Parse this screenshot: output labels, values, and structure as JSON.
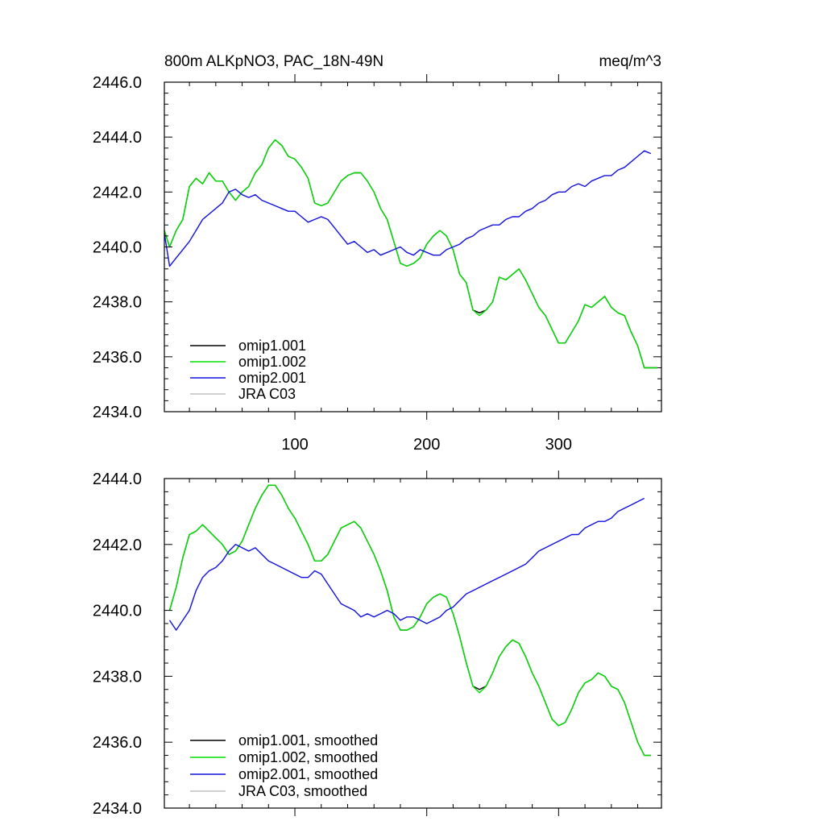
{
  "chart_data": [
    {
      "type": "line",
      "title": "800m ALKpNO3, PAC_18N-49N",
      "units": "meq/m^3",
      "xlim": [
        1,
        378
      ],
      "ylim": [
        2434.0,
        2446.0
      ],
      "xticks": [
        100,
        200,
        300
      ],
      "yticks": [
        2434.0,
        2436.0,
        2438.0,
        2440.0,
        2442.0,
        2444.0,
        2446.0
      ],
      "ytick_labels": [
        "2434.0",
        "2436.0",
        "2438.0",
        "2440.0",
        "2442.0",
        "2444.0",
        "2446.0"
      ],
      "xtick_labels": [
        "100",
        "200",
        "300"
      ],
      "legend_position": "bottom-left",
      "series": [
        {
          "name": "omip1.001",
          "color": "#000000",
          "x": [
            1,
            5,
            10,
            15,
            20,
            25,
            30,
            35,
            40,
            45,
            50,
            55,
            60,
            65,
            70,
            75,
            80,
            85,
            90,
            95,
            100,
            105,
            110,
            115,
            120,
            125,
            130,
            135,
            140,
            145,
            150,
            155,
            160,
            165,
            170,
            175,
            180,
            185,
            190,
            195,
            200,
            205,
            210,
            215,
            220,
            225,
            230,
            235,
            240,
            245,
            250,
            255,
            260,
            265,
            270,
            275,
            280,
            285,
            290,
            295,
            300,
            305,
            310,
            315,
            320,
            325,
            330,
            335,
            340,
            345,
            350,
            355,
            360,
            365,
            370,
            375
          ],
          "y": [
            2440.6,
            2440.0,
            2440.6,
            2441.0,
            2442.2,
            2442.5,
            2442.3,
            2442.7,
            2442.4,
            2442.4,
            2442.0,
            2441.7,
            2442.0,
            2442.2,
            2442.7,
            2443.0,
            2443.6,
            2443.9,
            2443.7,
            2443.3,
            2443.2,
            2442.9,
            2442.5,
            2441.6,
            2441.5,
            2441.6,
            2442.0,
            2442.4,
            2442.6,
            2442.7,
            2442.7,
            2442.4,
            2442.0,
            2441.4,
            2441.0,
            2440.2,
            2439.4,
            2439.3,
            2439.4,
            2439.6,
            2440.1,
            2440.4,
            2440.6,
            2440.4,
            2439.9,
            2439.0,
            2438.7,
            2437.7,
            2437.6,
            2437.7,
            2438.0,
            2438.9,
            2438.8,
            2439.0,
            2439.2,
            2438.8,
            2438.3,
            2437.8,
            2437.5,
            2437.0,
            2436.5,
            2436.5,
            2436.9,
            2437.3,
            2437.9,
            2437.8,
            2438.0,
            2438.2,
            2437.8,
            2437.6,
            2437.5,
            2436.9,
            2436.4,
            2435.6,
            2435.6,
            2435.6
          ]
        },
        {
          "name": "omip1.002",
          "color": "#00e000",
          "x": [
            1,
            5,
            10,
            15,
            20,
            25,
            30,
            35,
            40,
            45,
            50,
            55,
            60,
            65,
            70,
            75,
            80,
            85,
            90,
            95,
            100,
            105,
            110,
            115,
            120,
            125,
            130,
            135,
            140,
            145,
            150,
            155,
            160,
            165,
            170,
            175,
            180,
            185,
            190,
            195,
            200,
            205,
            210,
            215,
            220,
            225,
            230,
            235,
            240,
            245,
            250,
            255,
            260,
            265,
            270,
            275,
            280,
            285,
            290,
            295,
            300,
            305,
            310,
            315,
            320,
            325,
            330,
            335,
            340,
            345,
            350,
            355,
            360,
            365,
            370,
            375
          ],
          "y": [
            2440.6,
            2440.0,
            2440.6,
            2441.0,
            2442.2,
            2442.5,
            2442.3,
            2442.7,
            2442.4,
            2442.4,
            2442.0,
            2441.7,
            2442.0,
            2442.2,
            2442.7,
            2443.0,
            2443.6,
            2443.9,
            2443.7,
            2443.3,
            2443.2,
            2442.9,
            2442.5,
            2441.6,
            2441.5,
            2441.6,
            2442.0,
            2442.4,
            2442.6,
            2442.7,
            2442.7,
            2442.4,
            2442.0,
            2441.4,
            2441.0,
            2440.2,
            2439.4,
            2439.3,
            2439.4,
            2439.6,
            2440.1,
            2440.4,
            2440.6,
            2440.4,
            2439.9,
            2439.0,
            2438.7,
            2437.7,
            2437.5,
            2437.7,
            2438.0,
            2438.9,
            2438.8,
            2439.0,
            2439.2,
            2438.8,
            2438.3,
            2437.8,
            2437.5,
            2437.0,
            2436.5,
            2436.5,
            2436.9,
            2437.3,
            2437.9,
            2437.8,
            2438.0,
            2438.2,
            2437.8,
            2437.6,
            2437.5,
            2436.9,
            2436.4,
            2435.6,
            2435.6,
            2435.6
          ]
        },
        {
          "name": "omip2.001",
          "color": "#1010e0",
          "x": [
            1,
            5,
            10,
            15,
            20,
            25,
            30,
            35,
            40,
            45,
            50,
            55,
            60,
            65,
            70,
            75,
            80,
            85,
            90,
            95,
            100,
            105,
            110,
            115,
            120,
            125,
            130,
            135,
            140,
            145,
            150,
            155,
            160,
            165,
            170,
            175,
            180,
            185,
            190,
            195,
            200,
            205,
            210,
            215,
            220,
            225,
            230,
            235,
            240,
            245,
            250,
            255,
            260,
            265,
            270,
            275,
            280,
            285,
            290,
            295,
            300,
            305,
            310,
            315,
            320,
            325,
            330,
            335,
            340,
            345,
            350,
            355,
            360,
            365,
            370
          ],
          "y": [
            2440.5,
            2439.3,
            2439.6,
            2439.9,
            2440.2,
            2440.6,
            2441.0,
            2441.2,
            2441.4,
            2441.6,
            2442.0,
            2442.1,
            2441.9,
            2441.8,
            2441.9,
            2441.7,
            2441.6,
            2441.5,
            2441.4,
            2441.3,
            2441.3,
            2441.1,
            2440.9,
            2441.0,
            2441.1,
            2441.0,
            2440.7,
            2440.4,
            2440.1,
            2440.2,
            2440.0,
            2439.8,
            2439.9,
            2439.7,
            2439.8,
            2439.9,
            2440.0,
            2439.8,
            2439.7,
            2439.9,
            2439.8,
            2439.7,
            2439.7,
            2439.9,
            2440.0,
            2440.1,
            2440.3,
            2440.4,
            2440.6,
            2440.7,
            2440.8,
            2440.8,
            2441.0,
            2441.1,
            2441.1,
            2441.3,
            2441.4,
            2441.6,
            2441.7,
            2441.9,
            2442.0,
            2442.0,
            2442.2,
            2442.3,
            2442.2,
            2442.4,
            2442.5,
            2442.6,
            2442.6,
            2442.8,
            2442.9,
            2443.1,
            2443.3,
            2443.5,
            2443.4
          ]
        },
        {
          "name": "JRA C03",
          "color": "#c0c0c0",
          "x": [],
          "y": []
        }
      ]
    },
    {
      "type": "line",
      "title": "",
      "xlim": [
        1,
        378
      ],
      "ylim": [
        2434.0,
        2444.0
      ],
      "xticks": [
        100,
        200,
        300
      ],
      "yticks": [
        2434.0,
        2436.0,
        2438.0,
        2440.0,
        2442.0,
        2444.0
      ],
      "ytick_labels": [
        "2434.0",
        "2436.0",
        "2438.0",
        "2440.0",
        "2442.0",
        "2444.0"
      ],
      "xtick_labels": [],
      "legend_position": "bottom-left",
      "series": [
        {
          "name": "omip1.001, smoothed",
          "color": "#000000",
          "x": [
            5,
            10,
            15,
            20,
            25,
            30,
            35,
            40,
            45,
            50,
            55,
            60,
            65,
            70,
            75,
            80,
            85,
            90,
            95,
            100,
            105,
            110,
            115,
            120,
            125,
            130,
            135,
            140,
            145,
            150,
            155,
            160,
            165,
            170,
            175,
            180,
            185,
            190,
            195,
            200,
            205,
            210,
            215,
            220,
            225,
            230,
            235,
            240,
            245,
            250,
            255,
            260,
            265,
            270,
            275,
            280,
            285,
            290,
            295,
            300,
            305,
            310,
            315,
            320,
            325,
            330,
            335,
            340,
            345,
            350,
            355,
            360,
            365,
            370
          ],
          "y": [
            2440.0,
            2440.7,
            2441.6,
            2442.3,
            2442.4,
            2442.6,
            2442.4,
            2442.2,
            2442.0,
            2441.7,
            2441.8,
            2442.1,
            2442.6,
            2443.1,
            2443.5,
            2443.8,
            2443.8,
            2443.5,
            2443.1,
            2442.8,
            2442.4,
            2442.0,
            2441.5,
            2441.5,
            2441.7,
            2442.1,
            2442.5,
            2442.6,
            2442.7,
            2442.5,
            2442.1,
            2441.7,
            2441.2,
            2440.6,
            2439.8,
            2439.4,
            2439.4,
            2439.5,
            2439.8,
            2440.2,
            2440.4,
            2440.5,
            2440.4,
            2439.9,
            2439.2,
            2438.4,
            2437.7,
            2437.6,
            2437.7,
            2438.1,
            2438.6,
            2438.9,
            2439.1,
            2439.0,
            2438.6,
            2438.1,
            2437.7,
            2437.2,
            2436.7,
            2436.5,
            2436.6,
            2437.0,
            2437.5,
            2437.8,
            2437.9,
            2438.1,
            2438.0,
            2437.7,
            2437.6,
            2437.2,
            2436.6,
            2436.0,
            2435.6,
            2435.6
          ]
        },
        {
          "name": "omip1.002, smoothed",
          "color": "#00e000",
          "x": [
            5,
            10,
            15,
            20,
            25,
            30,
            35,
            40,
            45,
            50,
            55,
            60,
            65,
            70,
            75,
            80,
            85,
            90,
            95,
            100,
            105,
            110,
            115,
            120,
            125,
            130,
            135,
            140,
            145,
            150,
            155,
            160,
            165,
            170,
            175,
            180,
            185,
            190,
            195,
            200,
            205,
            210,
            215,
            220,
            225,
            230,
            235,
            240,
            245,
            250,
            255,
            260,
            265,
            270,
            275,
            280,
            285,
            290,
            295,
            300,
            305,
            310,
            315,
            320,
            325,
            330,
            335,
            340,
            345,
            350,
            355,
            360,
            365,
            370
          ],
          "y": [
            2440.0,
            2440.7,
            2441.6,
            2442.3,
            2442.4,
            2442.6,
            2442.4,
            2442.2,
            2442.0,
            2441.7,
            2441.8,
            2442.1,
            2442.6,
            2443.1,
            2443.5,
            2443.8,
            2443.8,
            2443.5,
            2443.1,
            2442.8,
            2442.4,
            2442.0,
            2441.5,
            2441.5,
            2441.7,
            2442.1,
            2442.5,
            2442.6,
            2442.7,
            2442.5,
            2442.1,
            2441.7,
            2441.2,
            2440.6,
            2439.8,
            2439.4,
            2439.4,
            2439.5,
            2439.8,
            2440.2,
            2440.4,
            2440.5,
            2440.4,
            2439.9,
            2439.2,
            2438.4,
            2437.7,
            2437.5,
            2437.7,
            2438.1,
            2438.6,
            2438.9,
            2439.1,
            2439.0,
            2438.6,
            2438.1,
            2437.7,
            2437.2,
            2436.7,
            2436.5,
            2436.6,
            2437.0,
            2437.5,
            2437.8,
            2437.9,
            2438.1,
            2438.0,
            2437.7,
            2437.6,
            2437.2,
            2436.6,
            2436.0,
            2435.6,
            2435.6
          ]
        },
        {
          "name": "omip2.001, smoothed",
          "color": "#1010e0",
          "x": [
            5,
            10,
            15,
            20,
            25,
            30,
            35,
            40,
            45,
            50,
            55,
            60,
            65,
            70,
            75,
            80,
            85,
            90,
            95,
            100,
            105,
            110,
            115,
            120,
            125,
            130,
            135,
            140,
            145,
            150,
            155,
            160,
            165,
            170,
            175,
            180,
            185,
            190,
            195,
            200,
            205,
            210,
            215,
            220,
            225,
            230,
            235,
            240,
            245,
            250,
            255,
            260,
            265,
            270,
            275,
            280,
            285,
            290,
            295,
            300,
            305,
            310,
            315,
            320,
            325,
            330,
            335,
            340,
            345,
            350,
            355,
            360,
            365
          ],
          "y": [
            2439.7,
            2439.4,
            2439.7,
            2440.0,
            2440.6,
            2441.0,
            2441.2,
            2441.3,
            2441.5,
            2441.8,
            2442.0,
            2441.9,
            2441.8,
            2441.9,
            2441.7,
            2441.5,
            2441.4,
            2441.3,
            2441.2,
            2441.1,
            2441.0,
            2441.0,
            2441.2,
            2441.1,
            2440.8,
            2440.5,
            2440.2,
            2440.1,
            2440.0,
            2439.8,
            2439.9,
            2439.8,
            2439.9,
            2440.0,
            2439.9,
            2439.7,
            2439.8,
            2439.8,
            2439.7,
            2439.6,
            2439.7,
            2439.8,
            2440.0,
            2440.1,
            2440.3,
            2440.5,
            2440.6,
            2440.7,
            2440.8,
            2440.9,
            2441.0,
            2441.1,
            2441.2,
            2441.3,
            2441.4,
            2441.6,
            2441.8,
            2441.9,
            2442.0,
            2442.1,
            2442.2,
            2442.3,
            2442.3,
            2442.5,
            2442.6,
            2442.7,
            2442.7,
            2442.8,
            2443.0,
            2443.1,
            2443.2,
            2443.3,
            2443.4
          ]
        },
        {
          "name": "JRA C03, smoothed",
          "color": "#c0c0c0",
          "x": [],
          "y": []
        }
      ]
    }
  ]
}
